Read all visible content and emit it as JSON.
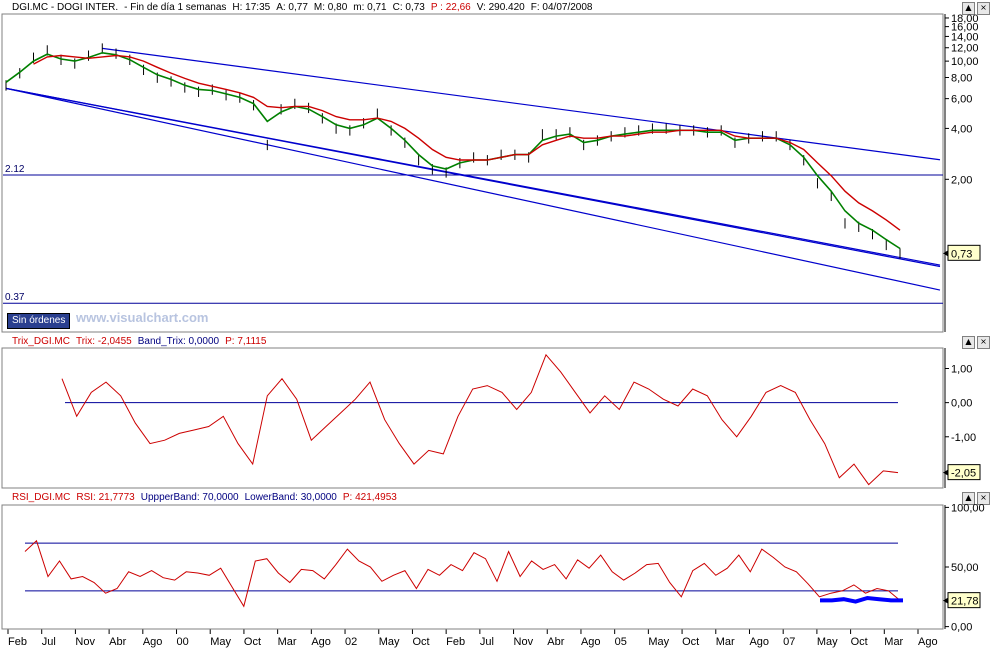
{
  "header": {
    "symbol": "DGI.MC - DOGI INTER.",
    "period": "- Fin de día 1 semanas",
    "high": "H: 17:35",
    "ask": "A: 0,77",
    "max": "M: 0,80",
    "min": "m: 0,71",
    "close": "C: 0,73",
    "p": "P : 22,66",
    "volume": "V: 290.420",
    "date": "F: 04/07/2008"
  },
  "trix_header": {
    "name": "Trix_DGI.MC",
    "trix": "Trix: -2,0455",
    "band": "Band_Trix: 0,0000",
    "p": "P: 7,1115"
  },
  "rsi_header": {
    "name": "RSI_DGI.MC",
    "rsi": "RSI: 21,7773",
    "upper": "UppperBand: 70,0000",
    "lower": "LowerBand: 30,0000",
    "p": "P: 421,4953"
  },
  "buttons": {
    "sin_ordenes": "Sin órdenes",
    "up": "▲",
    "close": "×"
  },
  "watermark": "www.visualchart.com",
  "colors": {
    "price": "#000000",
    "ma_short": "#008000",
    "ma_long": "#cc0000",
    "trend": "#0000cc",
    "indicator": "#cc0000",
    "band": "#000099",
    "label_bg": "#ffffcc"
  },
  "chart_data": [
    {
      "type": "line",
      "panel": "price",
      "scale": "log",
      "title": "",
      "ylim": [
        0.25,
        19
      ],
      "y_ticks": [
        "18,00",
        "16,00",
        "14,00",
        "12,00",
        "10,00",
        "8,00",
        "6,00",
        "4,00",
        "2,00"
      ],
      "y_tick_values": [
        18,
        16,
        14,
        12,
        10,
        8,
        6,
        4,
        2
      ],
      "x_ticks": [
        "Feb",
        "Jul",
        "Nov",
        "Abr",
        "Ago",
        "00",
        "May",
        "Oct",
        "Mar",
        "Ago",
        "02",
        "May",
        "Oct",
        "Feb",
        "Jul",
        "Nov",
        "Abr",
        "Ago",
        "05",
        "May",
        "Oct",
        "Mar",
        "Ago",
        "07",
        "May",
        "Oct",
        "Mar",
        "Ago"
      ],
      "last_label": "0,73",
      "horizontal_levels": [
        {
          "label": "2.12",
          "value": 2.12
        },
        {
          "label": "0.37",
          "value": 0.37
        }
      ],
      "series": [
        {
          "style": "ohlc",
          "values": [
            7.2,
            8.5,
            10.5,
            11.6,
            10.2,
            9.7,
            10.8,
            11.9,
            11.1,
            10.2,
            8.9,
            8.0,
            7.6,
            7.0,
            6.6,
            6.8,
            6.3,
            6.1,
            5.5,
            3.2,
            5.2,
            5.6,
            5.3,
            4.6,
            4.0,
            3.9,
            4.3,
            4.9,
            3.9,
            3.3,
            2.6,
            2.3,
            2.2,
            2.5,
            2.7,
            2.6,
            2.8,
            2.8,
            2.7,
            3.7,
            3.7,
            3.8,
            3.2,
            3.4,
            3.6,
            3.8,
            3.9,
            4.0,
            4.0,
            3.9,
            3.9,
            3.8,
            3.9,
            3.3,
            3.5,
            3.6,
            3.6,
            3.2,
            2.6,
            1.9,
            1.6,
            1.1,
            1.05,
            0.95,
            0.82,
            0.73
          ]
        },
        {
          "style": "line",
          "values": [
            7.5,
            8.6,
            10.0,
            11.0,
            10.3,
            10.0,
            10.5,
            11.2,
            10.9,
            10.2,
            9.2,
            8.3,
            7.8,
            7.2,
            6.8,
            6.7,
            6.4,
            6.1,
            5.6,
            4.4,
            5.0,
            5.4,
            5.2,
            4.7,
            4.2,
            4.0,
            4.2,
            4.6,
            4.0,
            3.4,
            2.8,
            2.4,
            2.3,
            2.5,
            2.6,
            2.6,
            2.7,
            2.8,
            2.8,
            3.4,
            3.6,
            3.7,
            3.3,
            3.4,
            3.6,
            3.7,
            3.8,
            3.9,
            3.9,
            3.9,
            3.9,
            3.8,
            3.8,
            3.4,
            3.5,
            3.5,
            3.5,
            3.2,
            2.7,
            2.1,
            1.7,
            1.3,
            1.1,
            1.0,
            0.88,
            0.78
          ]
        },
        {
          "style": "line",
          "values": [
            null,
            null,
            9.6,
            10.6,
            10.8,
            10.6,
            10.4,
            10.6,
            10.8,
            10.6,
            10.0,
            9.2,
            8.5,
            7.9,
            7.4,
            7.1,
            6.8,
            6.5,
            6.1,
            5.4,
            5.3,
            5.4,
            5.4,
            5.1,
            4.7,
            4.5,
            4.5,
            4.6,
            4.4,
            4.0,
            3.5,
            3.0,
            2.7,
            2.6,
            2.6,
            2.6,
            2.7,
            2.8,
            2.8,
            3.2,
            3.4,
            3.6,
            3.5,
            3.5,
            3.6,
            3.6,
            3.7,
            3.8,
            3.8,
            3.9,
            3.9,
            3.9,
            3.9,
            3.6,
            3.5,
            3.5,
            3.5,
            3.3,
            3.0,
            2.5,
            2.1,
            1.7,
            1.45,
            1.3,
            1.15,
            1.0
          ]
        }
      ]
    },
    {
      "type": "line",
      "panel": "trix",
      "ylim": [
        -2.5,
        1.6
      ],
      "y_ticks": [
        "1,00",
        "0,00",
        "-1,00"
      ],
      "y_tick_values": [
        1,
        0,
        -1
      ],
      "last_label": "-2,05",
      "band_value": 0,
      "series": [
        {
          "values": [
            0.7,
            -0.4,
            0.3,
            0.6,
            0.2,
            -0.6,
            -1.2,
            -1.1,
            -0.9,
            -0.8,
            -0.7,
            -0.4,
            -1.2,
            -1.8,
            0.2,
            0.7,
            0.1,
            -1.1,
            -0.7,
            -0.3,
            0.1,
            0.6,
            -0.5,
            -1.2,
            -1.8,
            -1.4,
            -1.5,
            -0.4,
            0.4,
            0.5,
            0.3,
            -0.2,
            0.3,
            1.4,
            0.9,
            0.3,
            -0.3,
            0.2,
            -0.2,
            0.6,
            0.4,
            0.1,
            -0.1,
            0.4,
            0.2,
            -0.5,
            -1.0,
            -0.4,
            0.3,
            0.5,
            0.3,
            -0.5,
            -1.2,
            -2.2,
            -1.8,
            -2.4,
            -2.0,
            -2.05
          ]
        }
      ]
    },
    {
      "type": "line",
      "panel": "rsi",
      "ylim": [
        -2,
        102
      ],
      "y_ticks": [
        "100,00",
        "50,00",
        "0,00"
      ],
      "y_tick_values": [
        100,
        50,
        0
      ],
      "last_label": "21,78",
      "upper_band": 70,
      "lower_band": 30,
      "series": [
        {
          "values": [
            63,
            72,
            42,
            55,
            40,
            42,
            37,
            28,
            32,
            46,
            42,
            47,
            41,
            39,
            46,
            45,
            43,
            49,
            33,
            17,
            55,
            57,
            45,
            37,
            48,
            47,
            40,
            52,
            65,
            55,
            50,
            38,
            43,
            47,
            32,
            48,
            43,
            52,
            47,
            62,
            57,
            38,
            63,
            42,
            55,
            48,
            52,
            40,
            56,
            49,
            60,
            46,
            39,
            45,
            52,
            53,
            37,
            25,
            47,
            53,
            43,
            49,
            60,
            46,
            65,
            58,
            50,
            46,
            36,
            25,
            28,
            30,
            35,
            28,
            32,
            30,
            22
          ]
        },
        {
          "values": [
            22,
            22,
            23,
            21,
            24,
            23,
            22,
            22
          ]
        }
      ]
    }
  ]
}
